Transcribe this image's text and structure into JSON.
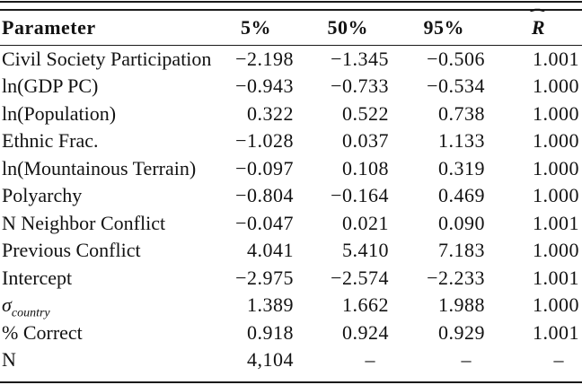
{
  "colors": {
    "rule": "#1a1a1a",
    "text": "#121212",
    "background": "#ffffff"
  },
  "table": {
    "header": {
      "parameter": "Parameter",
      "p5": "5%",
      "p50": "50%",
      "p95": "95%",
      "rhat_base": "R",
      "rhat_accent": "ˆ"
    },
    "rows": [
      {
        "param": "Civil Society Participation",
        "cells": [
          "−2.198",
          "−1.345",
          "−0.506",
          "1.001"
        ]
      },
      {
        "param": "ln(GDP PC)",
        "cells": [
          "−0.943",
          "−0.733",
          "−0.534",
          "1.000"
        ]
      },
      {
        "param": "ln(Population)",
        "cells": [
          "0.322",
          "0.522",
          "0.738",
          "1.000"
        ]
      },
      {
        "param": "Ethnic Frac.",
        "cells": [
          "−1.028",
          "0.037",
          "1.133",
          "1.000"
        ]
      },
      {
        "param": "ln(Mountainous Terrain)",
        "cells": [
          "−0.097",
          "0.108",
          "0.319",
          "1.000"
        ]
      },
      {
        "param": "Polyarchy",
        "cells": [
          "−0.804",
          "−0.164",
          "0.469",
          "1.000"
        ]
      },
      {
        "param": "N Neighbor Conflict",
        "cells": [
          "−0.047",
          "0.021",
          "0.090",
          "1.001"
        ]
      },
      {
        "param": "Previous Conflict",
        "cells": [
          "4.041",
          "5.410",
          "7.183",
          "1.000"
        ]
      },
      {
        "param": "Intercept",
        "cells": [
          "−2.975",
          "−2.574",
          "−2.233",
          "1.001"
        ]
      },
      {
        "param_base": "σ",
        "param_sub": "country",
        "cells": [
          "1.389",
          "1.662",
          "1.988",
          "1.000"
        ]
      },
      {
        "param": "% Correct",
        "cells": [
          "0.918",
          "0.924",
          "0.929",
          "1.001"
        ]
      },
      {
        "param": "N",
        "cells": [
          "4,104",
          "–",
          "–",
          "–"
        ]
      }
    ]
  }
}
